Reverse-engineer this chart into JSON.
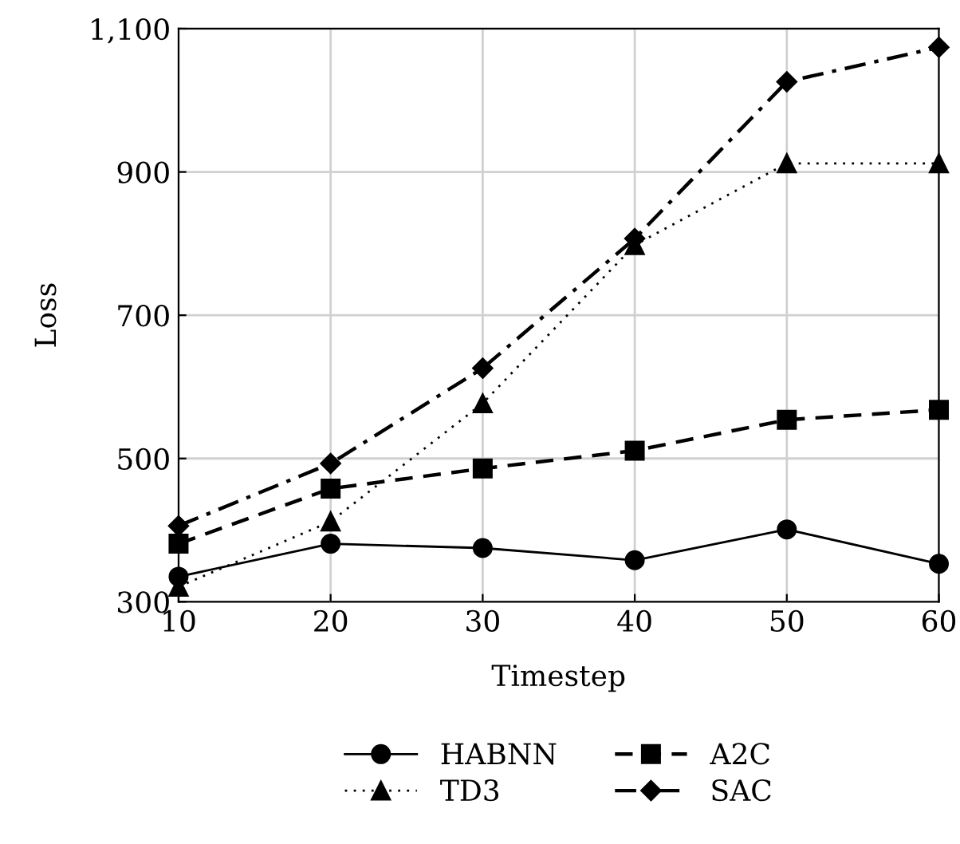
{
  "chart_data": {
    "type": "line",
    "xlabel": "Timestep",
    "ylabel": "Loss",
    "x": [
      10,
      20,
      30,
      40,
      50,
      60
    ],
    "series": [
      {
        "name": "HABNN",
        "color": "#000000",
        "marker": "circle",
        "line_style": "solid",
        "values": [
          335,
          381,
          375,
          358,
          401,
          353
        ]
      },
      {
        "name": "A2C",
        "color": "#000000",
        "marker": "square",
        "line_style": "dashed",
        "values": [
          381,
          458,
          486,
          511,
          554,
          568
        ]
      },
      {
        "name": "TD3",
        "color": "#000000",
        "marker": "triangle",
        "line_style": "dotted",
        "values": [
          321,
          412,
          577,
          798,
          912,
          912
        ]
      },
      {
        "name": "SAC",
        "color": "#000000",
        "marker": "diamond",
        "line_style": "dashdot",
        "values": [
          406,
          493,
          626,
          807,
          1026,
          1074
        ]
      }
    ],
    "xlim": [
      10,
      60
    ],
    "xticks": [
      10,
      20,
      30,
      40,
      50,
      60
    ],
    "ylim": [
      300,
      1100
    ],
    "yticks": [
      300,
      500,
      700,
      900,
      {
        "value": 1100,
        "label": "1,100"
      }
    ],
    "grid": true,
    "legend": "bottom"
  }
}
